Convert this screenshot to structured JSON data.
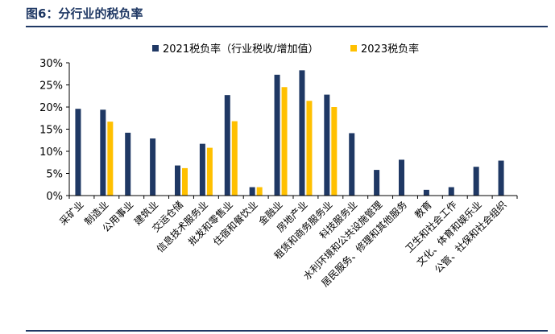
{
  "header": {
    "title": "图6：分行业的税负率"
  },
  "chart_data": {
    "type": "bar",
    "categories": [
      "采矿业",
      "制造业",
      "公用事业",
      "建筑业",
      "交运仓储",
      "信息技术服务业",
      "批发和零售业",
      "住宿和餐饮业",
      "金融业",
      "房地产业",
      "租赁和商务服务业",
      "科技服务业",
      "水利环境和公共设施管理",
      "居民服务、修理和其他服务",
      "教育",
      "卫生和社会工作",
      "文化、体育和娱乐业",
      "公管、社保和社会组织"
    ],
    "series": [
      {
        "name": "2021税负率（行业税收/增加值）",
        "color": "#1f3864",
        "values": [
          19.6,
          19.4,
          14.2,
          12.9,
          6.8,
          11.7,
          22.7,
          1.9,
          27.3,
          28.3,
          22.8,
          14.1,
          5.8,
          8.1,
          1.3,
          1.9,
          6.5,
          7.9
        ]
      },
      {
        "name": "2023税负率",
        "color": "#ffc000",
        "values": [
          null,
          16.7,
          null,
          null,
          6.2,
          10.8,
          16.8,
          1.9,
          24.5,
          21.4,
          20.0,
          null,
          null,
          null,
          null,
          null,
          null,
          null
        ]
      }
    ],
    "ylim": [
      0,
      30
    ],
    "yticks": [
      "0%",
      "5%",
      "10%",
      "15%",
      "20%",
      "25%",
      "30%"
    ],
    "grid": false,
    "legend_position": "top"
  }
}
